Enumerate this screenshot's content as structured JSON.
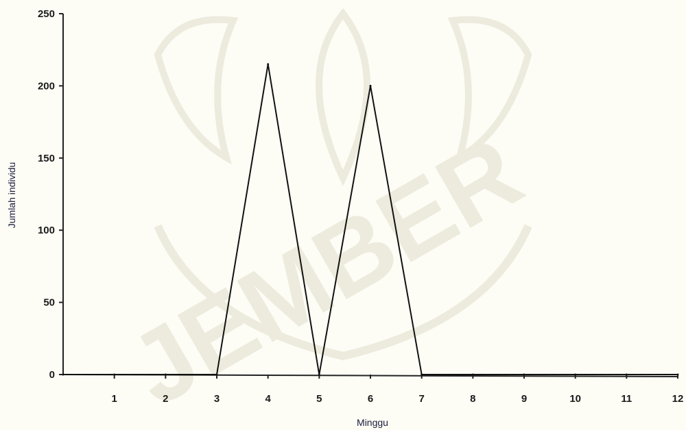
{
  "watermark": {
    "text": "JEMBER"
  },
  "chart_data": {
    "type": "line",
    "title": "",
    "xlabel": "Minggu",
    "ylabel": "Jumlah individu",
    "x": [
      0,
      1,
      2,
      3,
      4,
      5,
      6,
      7,
      8,
      9,
      10,
      11,
      12
    ],
    "xlim": [
      0,
      12
    ],
    "ylim": [
      0,
      250
    ],
    "x_tick_labels": [
      "1",
      "2",
      "3",
      "4",
      "5",
      "6",
      "7",
      "8",
      "9",
      "10",
      "11",
      "12"
    ],
    "y_ticks": [
      0,
      50,
      100,
      150,
      200,
      250
    ],
    "series": [
      {
        "values": [
          0,
          0,
          0,
          0,
          215,
          0,
          200,
          0,
          0,
          0,
          0,
          0,
          0
        ]
      }
    ],
    "grid": false,
    "legend": "none",
    "colors": {
      "line": "#111111",
      "axis": "#1a1a1a",
      "ylabel": "#1a1a5a",
      "watermark": "#c8c0a0"
    }
  }
}
